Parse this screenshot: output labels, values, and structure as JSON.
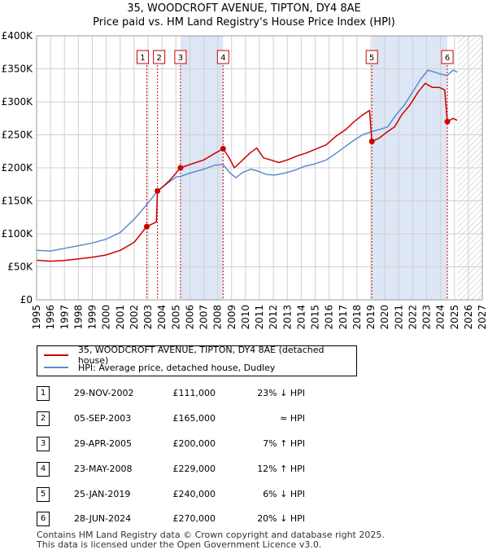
{
  "title_line1": "35, WOODCROFT AVENUE, TIPTON, DY4 8AE",
  "title_line2": "Price paid vs. HM Land Registry's House Price Index (HPI)",
  "legend": {
    "property": "35, WOODCROFT AVENUE, TIPTON, DY4 8AE (detached house)",
    "hpi": "HPI: Average price, detached house, Dudley"
  },
  "colors": {
    "property": "#cc0000",
    "hpi": "#5b8bd0",
    "shade": "#dde6f5",
    "grid": "#d0d0d0"
  },
  "transactions": [
    {
      "num": "1",
      "date": "29-NOV-2002",
      "price": "£111,000",
      "hpi": "23% ↓ HPI"
    },
    {
      "num": "2",
      "date": "05-SEP-2003",
      "price": "£165,000",
      "hpi": "≈ HPI"
    },
    {
      "num": "3",
      "date": "29-APR-2005",
      "price": "£200,000",
      "hpi": "7% ↑ HPI"
    },
    {
      "num": "4",
      "date": "23-MAY-2008",
      "price": "£229,000",
      "hpi": "12% ↑ HPI"
    },
    {
      "num": "5",
      "date": "25-JAN-2019",
      "price": "£240,000",
      "hpi": "6% ↓ HPI"
    },
    {
      "num": "6",
      "date": "28-JUN-2024",
      "price": "£270,000",
      "hpi": "20% ↓ HPI"
    }
  ],
  "footer_line1": "Contains HM Land Registry data © Crown copyright and database right 2025.",
  "footer_line2": "This data is licensed under the Open Government Licence v3.0.",
  "chart_data": {
    "type": "line",
    "title": "35, WOODCROFT AVENUE, TIPTON, DY4 8AE — Price paid vs. HM Land Registry's House Price Index (HPI)",
    "xlabel": "",
    "ylabel": "",
    "xlim": [
      1995,
      2027
    ],
    "ylim": [
      0,
      400000
    ],
    "x_ticks": [
      1995,
      1996,
      1997,
      1998,
      1999,
      2000,
      2001,
      2002,
      2003,
      2004,
      2005,
      2006,
      2007,
      2008,
      2009,
      2010,
      2011,
      2012,
      2013,
      2014,
      2015,
      2016,
      2017,
      2018,
      2019,
      2020,
      2021,
      2022,
      2023,
      2024,
      2025,
      2026,
      2027
    ],
    "y_ticks": [
      {
        "value": 0,
        "label": "£0"
      },
      {
        "value": 50000,
        "label": "£50K"
      },
      {
        "value": 100000,
        "label": "£100K"
      },
      {
        "value": 150000,
        "label": "£150K"
      },
      {
        "value": 200000,
        "label": "£200K"
      },
      {
        "value": 250000,
        "label": "£250K"
      },
      {
        "value": 300000,
        "label": "£300K"
      },
      {
        "value": 350000,
        "label": "£350K"
      },
      {
        "value": 400000,
        "label": "£400K"
      }
    ],
    "shaded_periods": [
      [
        2005.33,
        2008.39
      ],
      [
        2019.07,
        2024.49
      ]
    ],
    "future_hatch_from": 2025.2,
    "sales": [
      {
        "num": "1",
        "x": 2002.91,
        "y": 111000
      },
      {
        "num": "2",
        "x": 2003.68,
        "y": 165000
      },
      {
        "num": "3",
        "x": 2005.33,
        "y": 200000
      },
      {
        "num": "4",
        "x": 2008.39,
        "y": 229000
      },
      {
        "num": "5",
        "x": 2019.07,
        "y": 240000
      },
      {
        "num": "6",
        "x": 2024.49,
        "y": 270000
      }
    ],
    "series": [
      {
        "name": "35, WOODCROFT AVENUE, TIPTON, DY4 8AE (detached house)",
        "points": [
          [
            1995.0,
            60000
          ],
          [
            1996.0,
            58500
          ],
          [
            1997.0,
            59500
          ],
          [
            1998.0,
            62000
          ],
          [
            1999.0,
            64500
          ],
          [
            2000.0,
            68000
          ],
          [
            2001.0,
            75000
          ],
          [
            2002.0,
            87000
          ],
          [
            2002.9,
            111000
          ],
          [
            2003.6,
            118000
          ],
          [
            2003.68,
            165000
          ],
          [
            2004.0,
            170000
          ],
          [
            2004.6,
            182000
          ],
          [
            2005.33,
            200000
          ],
          [
            2006.0,
            205000
          ],
          [
            2007.0,
            212000
          ],
          [
            2007.8,
            222000
          ],
          [
            2008.39,
            229000
          ],
          [
            2008.8,
            216000
          ],
          [
            2009.2,
            200000
          ],
          [
            2009.7,
            210000
          ],
          [
            2010.3,
            222000
          ],
          [
            2010.8,
            230000
          ],
          [
            2011.3,
            215000
          ],
          [
            2011.8,
            212000
          ],
          [
            2012.4,
            208000
          ],
          [
            2013.0,
            212000
          ],
          [
            2013.7,
            218000
          ],
          [
            2014.3,
            222000
          ],
          [
            2015.0,
            228000
          ],
          [
            2015.8,
            235000
          ],
          [
            2016.5,
            248000
          ],
          [
            2017.2,
            258000
          ],
          [
            2017.8,
            270000
          ],
          [
            2018.4,
            280000
          ],
          [
            2018.9,
            287000
          ],
          [
            2019.07,
            240000
          ],
          [
            2019.6,
            245000
          ],
          [
            2020.2,
            255000
          ],
          [
            2020.7,
            262000
          ],
          [
            2021.2,
            280000
          ],
          [
            2021.8,
            295000
          ],
          [
            2022.4,
            315000
          ],
          [
            2022.9,
            328000
          ],
          [
            2023.4,
            322000
          ],
          [
            2023.9,
            322000
          ],
          [
            2024.3,
            318000
          ],
          [
            2024.49,
            270000
          ],
          [
            2024.9,
            275000
          ],
          [
            2025.2,
            272000
          ]
        ]
      },
      {
        "name": "HPI: Average price, detached house, Dudley",
        "points": [
          [
            1995.0,
            75000
          ],
          [
            1996.0,
            74000
          ],
          [
            1997.0,
            78000
          ],
          [
            1998.0,
            82000
          ],
          [
            1999.0,
            86000
          ],
          [
            2000.0,
            92000
          ],
          [
            2001.0,
            102000
          ],
          [
            2002.0,
            122000
          ],
          [
            2002.9,
            144000
          ],
          [
            2003.68,
            165000
          ],
          [
            2004.3,
            175000
          ],
          [
            2005.0,
            186000
          ],
          [
            2005.33,
            187000
          ],
          [
            2006.0,
            192000
          ],
          [
            2007.0,
            198000
          ],
          [
            2007.8,
            204000
          ],
          [
            2008.39,
            205000
          ],
          [
            2008.9,
            192000
          ],
          [
            2009.3,
            185000
          ],
          [
            2009.8,
            193000
          ],
          [
            2010.4,
            198000
          ],
          [
            2010.9,
            195000
          ],
          [
            2011.5,
            190000
          ],
          [
            2012.1,
            189000
          ],
          [
            2012.8,
            192000
          ],
          [
            2013.5,
            196000
          ],
          [
            2014.2,
            202000
          ],
          [
            2015.0,
            206000
          ],
          [
            2015.8,
            212000
          ],
          [
            2016.5,
            222000
          ],
          [
            2017.2,
            233000
          ],
          [
            2017.8,
            242000
          ],
          [
            2018.4,
            250000
          ],
          [
            2019.07,
            255000
          ],
          [
            2019.6,
            258000
          ],
          [
            2020.2,
            262000
          ],
          [
            2020.8,
            280000
          ],
          [
            2021.4,
            295000
          ],
          [
            2022.0,
            315000
          ],
          [
            2022.6,
            335000
          ],
          [
            2023.1,
            348000
          ],
          [
            2023.6,
            345000
          ],
          [
            2024.0,
            342000
          ],
          [
            2024.49,
            340000
          ],
          [
            2024.9,
            348000
          ],
          [
            2025.2,
            345000
          ]
        ]
      }
    ]
  }
}
